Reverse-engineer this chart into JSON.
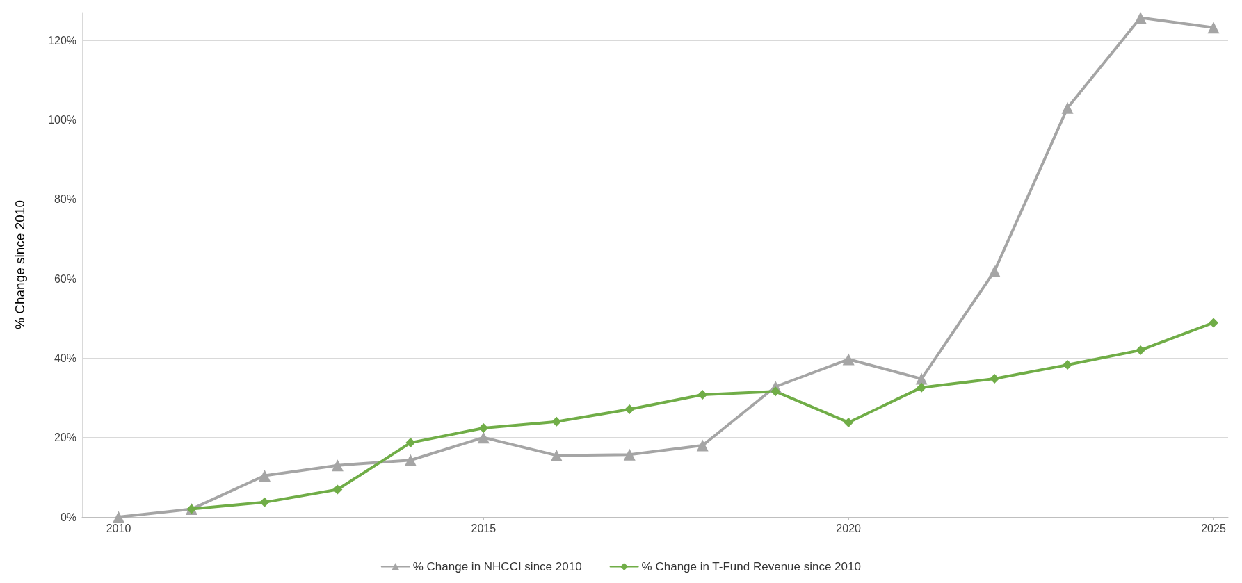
{
  "chart_data": {
    "type": "line",
    "ylabel": "% Change since 2010",
    "x": [
      2010,
      2011,
      2012,
      2013,
      2014,
      2015,
      2016,
      2017,
      2018,
      2019,
      2020,
      2021,
      2022,
      2023,
      2024,
      2025
    ],
    "series": [
      {
        "name": "% Change in NHCCI since 2010",
        "color": "#a5a5a5",
        "marker": "triangle",
        "values": [
          0,
          2,
          10.4,
          13,
          14.3,
          20,
          15.5,
          15.7,
          18,
          32.8,
          39.7,
          34.8,
          61.9,
          103,
          125.7,
          123.2
        ]
      },
      {
        "name": "% Change in T-Fund Revenue since 2010",
        "color": "#70ad47",
        "marker": "diamond",
        "values": [
          null,
          2,
          3.7,
          6.9,
          18.7,
          22.4,
          24,
          27.1,
          30.8,
          31.6,
          23.8,
          32.6,
          34.8,
          38.3,
          42,
          48.9
        ]
      }
    ],
    "xlim": [
      2009.5,
      2025.2
    ],
    "xticks": [
      2010,
      2015,
      2020,
      2025
    ],
    "ylim": [
      0,
      127
    ],
    "yticks": [
      {
        "value": 0,
        "label": "0%"
      },
      {
        "value": 20,
        "label": "20%"
      },
      {
        "value": 40,
        "label": "40%"
      },
      {
        "value": 60,
        "label": "60%"
      },
      {
        "value": 80,
        "label": "80%"
      },
      {
        "value": 100,
        "label": "100%"
      },
      {
        "value": 120,
        "label": "120%"
      }
    ],
    "grid": "y",
    "legend": "bottom",
    "line_style": "solid"
  }
}
